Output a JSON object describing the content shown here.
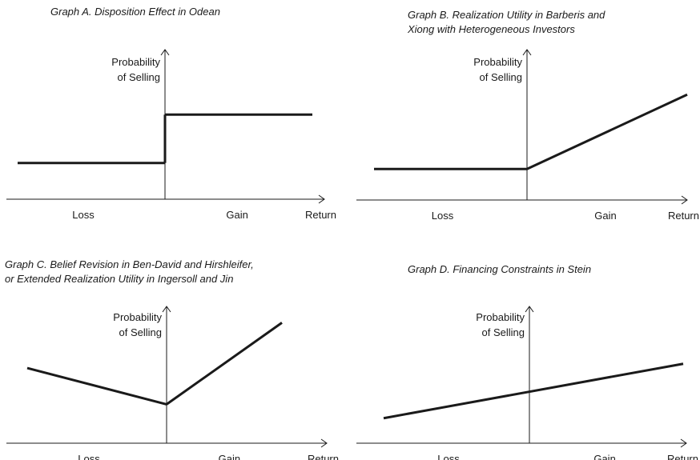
{
  "chart_data": [
    {
      "type": "line",
      "panel": "A",
      "title_lines": [
        "Graph A. Disposition Effect in Odean"
      ],
      "ylabel_lines": [
        "Probability",
        "of Selling"
      ],
      "xlabel": "Return",
      "x_region_labels": [
        "Loss",
        "Gain"
      ],
      "x": [
        -1,
        0,
        0,
        1
      ],
      "y": [
        0.3,
        0.3,
        0.7,
        0.7
      ],
      "shape": "step up at zero return",
      "xlim": [
        -1,
        1
      ],
      "ylim": [
        0,
        1
      ],
      "grid": false
    },
    {
      "type": "line",
      "panel": "B",
      "title_lines": [
        "Graph B. Realization Utility in Barberis and",
        "Xiong with Heterogeneous Investors"
      ],
      "ylabel_lines": [
        "Probability",
        "of Selling"
      ],
      "xlabel": "Return",
      "x_region_labels": [
        "Loss",
        "Gain"
      ],
      "x": [
        -1,
        0,
        1
      ],
      "y": [
        0.25,
        0.25,
        0.85
      ],
      "shape": "flat for losses, increasing for gains",
      "xlim": [
        -1,
        1
      ],
      "ylim": [
        0,
        1
      ],
      "grid": false
    },
    {
      "type": "line",
      "panel": "C",
      "title_lines": [
        "Graph C. Belief Revision in Ben-David and Hirshleifer,",
        "or Extended Realization Utility in Ingersoll and Jin"
      ],
      "ylabel_lines": [
        "Probability",
        "of Selling"
      ],
      "xlabel": "Return",
      "x_region_labels": [
        "Loss",
        "Gain"
      ],
      "x": [
        -1,
        0,
        0.9
      ],
      "y": [
        0.58,
        0.3,
        0.93
      ],
      "shape": "V-shaped, minimum at zero return",
      "xlim": [
        -1,
        1
      ],
      "ylim": [
        0,
        1
      ],
      "grid": false
    },
    {
      "type": "line",
      "panel": "D",
      "title_lines": [
        "Graph D. Financing Constraints in Stein"
      ],
      "ylabel_lines": [
        "Probability",
        "of Selling"
      ],
      "xlabel": "Return",
      "x_region_labels": [
        "Loss",
        "Gain"
      ],
      "x": [
        -1,
        1
      ],
      "y": [
        0.23,
        0.73
      ],
      "shape": "linearly increasing",
      "xlim": [
        -1,
        1
      ],
      "ylim": [
        0,
        1
      ],
      "grid": false
    }
  ]
}
